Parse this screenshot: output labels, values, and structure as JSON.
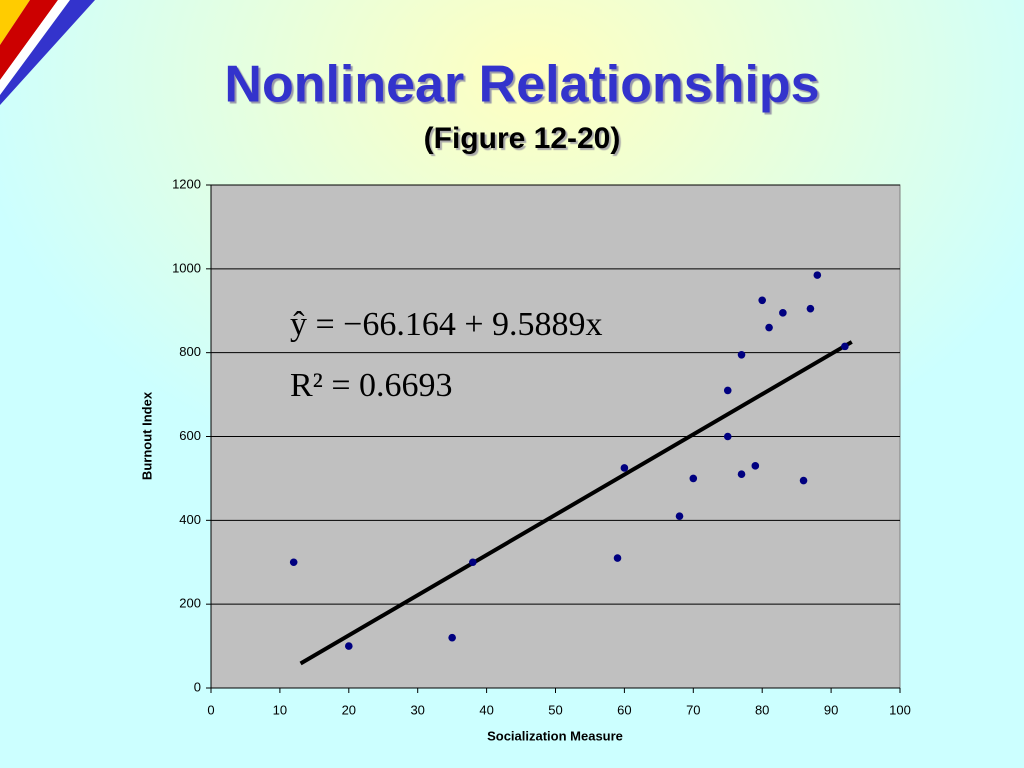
{
  "chart_data": {
    "type": "scatter",
    "title": "Nonlinear Relationships",
    "subtitle": "(Figure 12-20)",
    "x_label": "Socialization Measure",
    "y_label": "Burnout Index",
    "x": [
      12,
      20,
      35,
      38,
      59,
      60,
      68,
      70,
      75,
      75,
      77,
      77,
      79,
      80,
      81,
      83,
      86,
      87,
      88,
      92
    ],
    "values": [
      300,
      100,
      120,
      300,
      310,
      525,
      410,
      500,
      600,
      710,
      795,
      510,
      530,
      925,
      860,
      895,
      495,
      905,
      985,
      815
    ],
    "color": "#000080",
    "xlim": [
      0,
      100
    ],
    "xticks": [
      0,
      10,
      20,
      30,
      40,
      50,
      60,
      70,
      80,
      90,
      100
    ],
    "ylim": [
      0,
      1200
    ],
    "yticks": [
      0,
      200,
      400,
      600,
      800,
      1000,
      1200
    ],
    "grid": true,
    "trendline": {
      "intercept": -66.164,
      "slope": 9.5889,
      "x_range": [
        13,
        93
      ],
      "color": "#000000"
    },
    "annotations": [
      "ŷ = −66.164 + 9.5889x",
      "R² = 0.6693"
    ]
  }
}
